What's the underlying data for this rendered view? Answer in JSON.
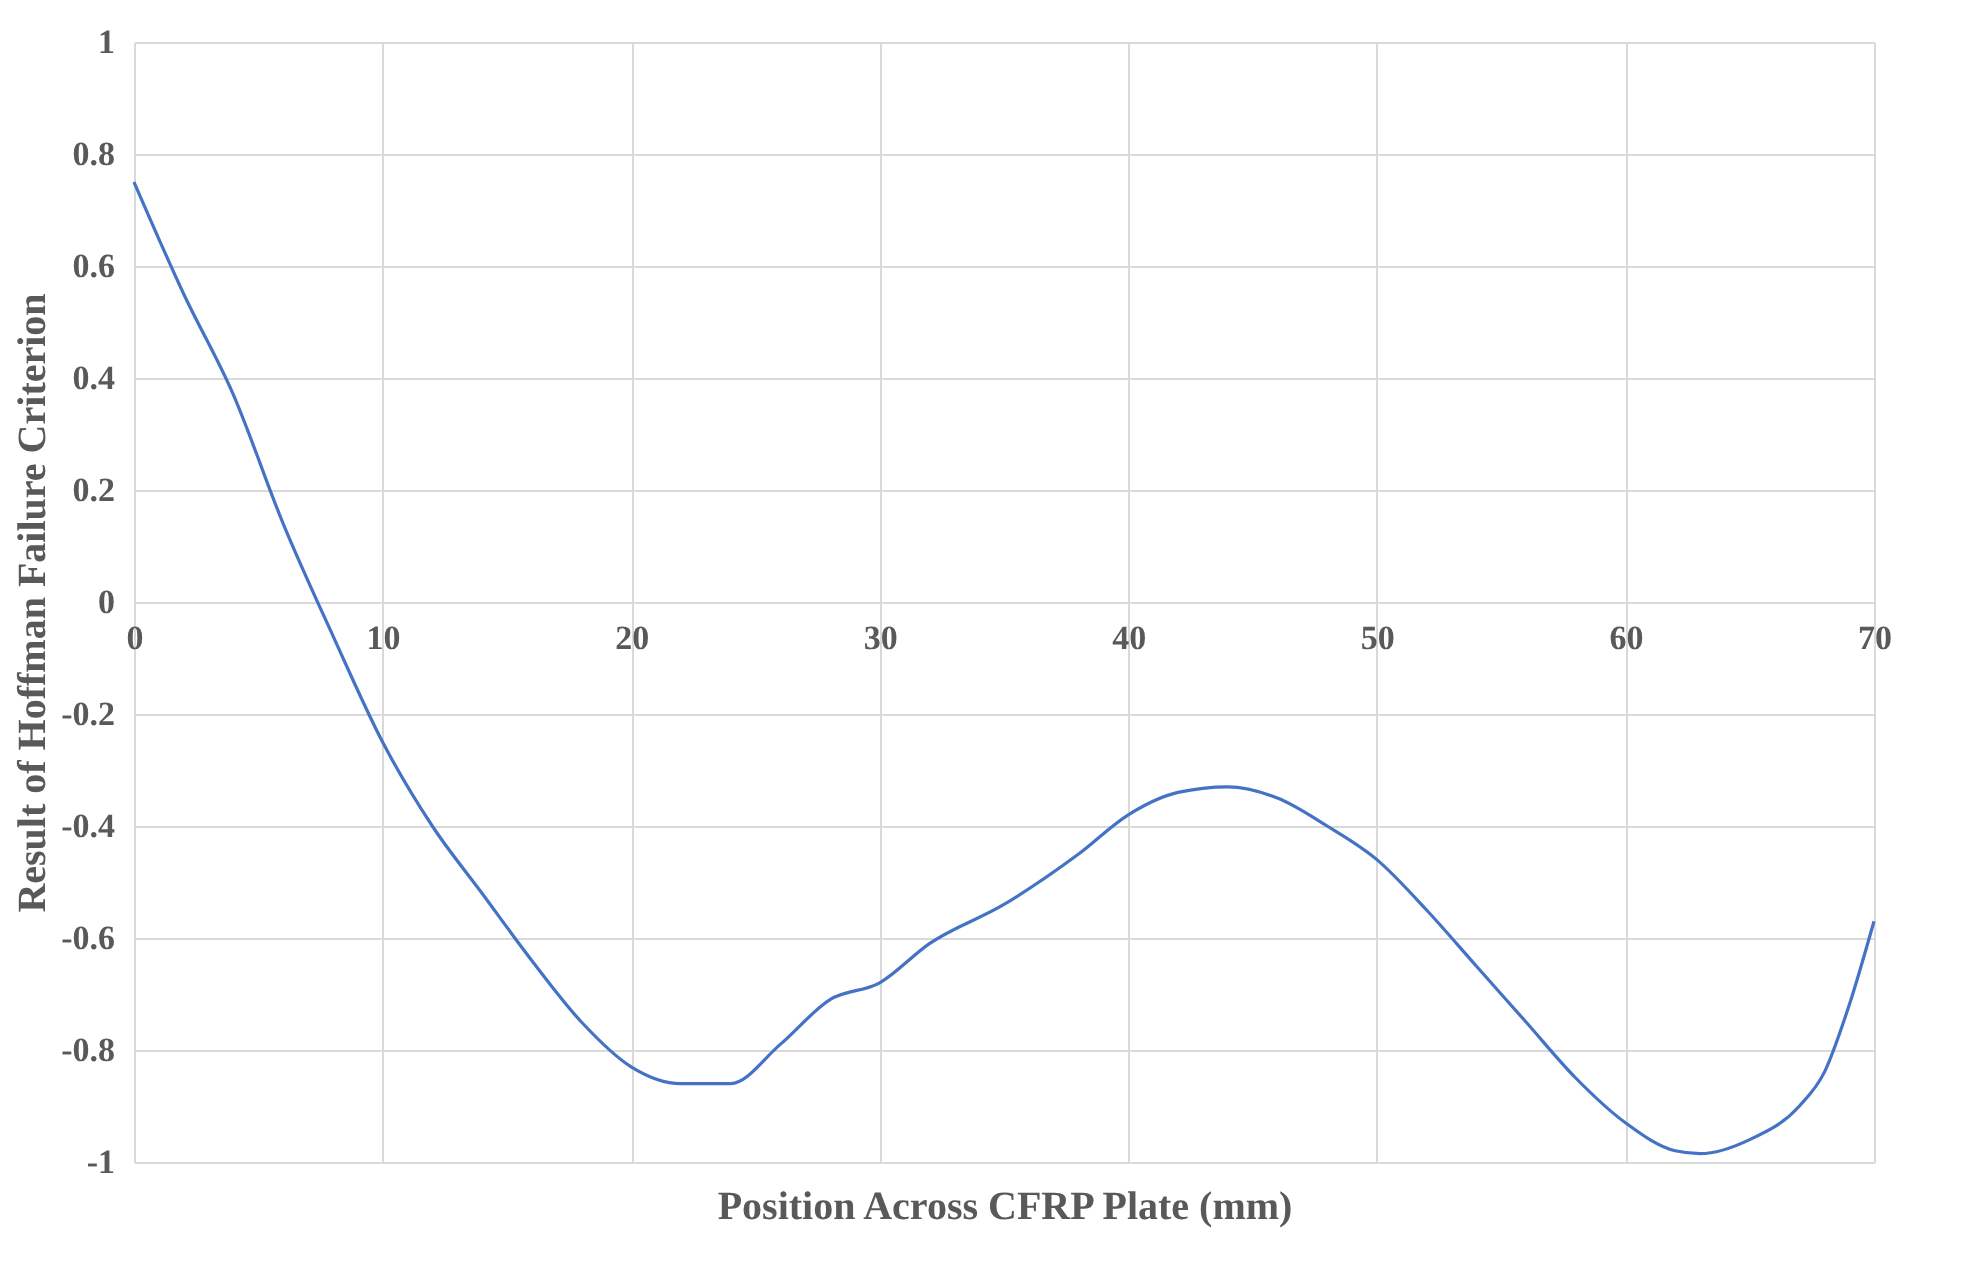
{
  "chart_data": {
    "type": "line",
    "xlabel": "Position Across CFRP Plate (mm)",
    "ylabel": "Result of Hoffman Failure Criterion",
    "x": [
      0,
      2,
      4,
      6,
      8,
      10,
      12,
      14,
      16,
      18,
      20,
      22,
      24,
      26,
      28,
      30,
      32,
      35,
      38,
      40,
      42,
      44,
      46,
      48,
      50,
      52,
      54,
      56,
      58,
      60,
      62,
      63,
      65,
      67,
      68,
      69,
      70
    ],
    "series": [
      {
        "color": "#4472c4",
        "values": [
          0.75,
          0.55,
          0.37,
          0.14,
          -0.06,
          -0.25,
          -0.4,
          -0.52,
          -0.64,
          -0.75,
          -0.83,
          -0.86,
          -0.86,
          -0.79,
          -0.71,
          -0.68,
          -0.61,
          -0.54,
          -0.45,
          -0.38,
          -0.34,
          -0.33,
          -0.35,
          -0.4,
          -0.46,
          -0.55,
          -0.65,
          -0.75,
          -0.85,
          -0.93,
          -0.98,
          -0.985,
          -0.96,
          -0.9,
          -0.84,
          -0.72,
          -0.57
        ]
      }
    ],
    "xlim": [
      0,
      70
    ],
    "xticks": [
      0,
      10,
      20,
      30,
      40,
      50,
      60,
      70
    ],
    "ylim": [
      -1,
      1
    ],
    "yticks": [
      -1,
      -0.8,
      -0.6,
      -0.4,
      -0.2,
      0,
      0.2,
      0.4,
      0.6,
      0.8,
      1
    ],
    "grid": true,
    "marker": "none",
    "line_style": "solid"
  }
}
